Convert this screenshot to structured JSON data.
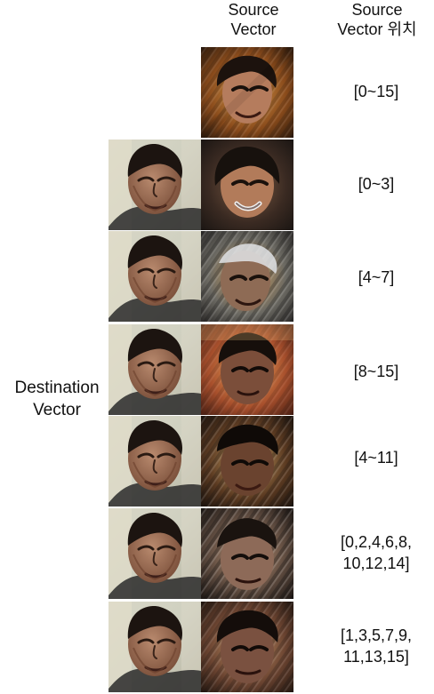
{
  "headers": {
    "source_vector": "Source\nVector",
    "source_vector_position": "Source\nVector 위치"
  },
  "destination_label": "Destination\nVector",
  "rows": [
    {
      "range": "[0~15]"
    },
    {
      "range": "[0~3]"
    },
    {
      "range": "[4~7]"
    },
    {
      "range": "[8~15]"
    },
    {
      "range": "[4~11]"
    },
    {
      "range": "[0,2,4,6,8,\n10,12,14]"
    },
    {
      "range": "[1,3,5,7,9,\n11,13,15]"
    }
  ]
}
